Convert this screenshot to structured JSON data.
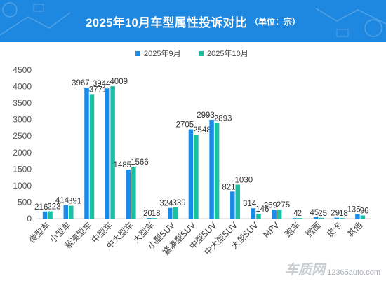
{
  "header": {
    "title": "2025年10月车型属性投诉对比",
    "unit": "（单位：宗）"
  },
  "colors": {
    "header_bg": "#1e88e0",
    "series_sep": "#1a8be8",
    "series_oct": "#19c0a4"
  },
  "watermark": {
    "brand": "车质网",
    "url": "12365auto.com"
  },
  "chart_data": {
    "type": "bar",
    "categories": [
      "微型车",
      "小型车",
      "紧凑型车",
      "中型车",
      "中大型车",
      "大型车",
      "小型SUV",
      "紧凑型SUV",
      "中型SUV",
      "中大型SUV",
      "大型SUV",
      "MPV",
      "跑车",
      "微面",
      "皮卡",
      "其他"
    ],
    "series": [
      {
        "name": "2025年9月",
        "values": [
          216,
          414,
          3967,
          3944,
          1485,
          20,
          324,
          2705,
          2993,
          821,
          314,
          269,
          4,
          45,
          29,
          135
        ]
      },
      {
        "name": "2025年10月",
        "values": [
          223,
          391,
          3771,
          4009,
          1566,
          18,
          339,
          2548,
          2893,
          1030,
          146,
          275,
          2,
          25,
          18,
          96
        ]
      }
    ],
    "ylim": [
      0,
      4500
    ],
    "yticks": [
      0,
      500,
      1000,
      1500,
      2000,
      2500,
      3000,
      3500,
      4000,
      4500
    ],
    "legend_position": "top-center",
    "grid": false
  }
}
